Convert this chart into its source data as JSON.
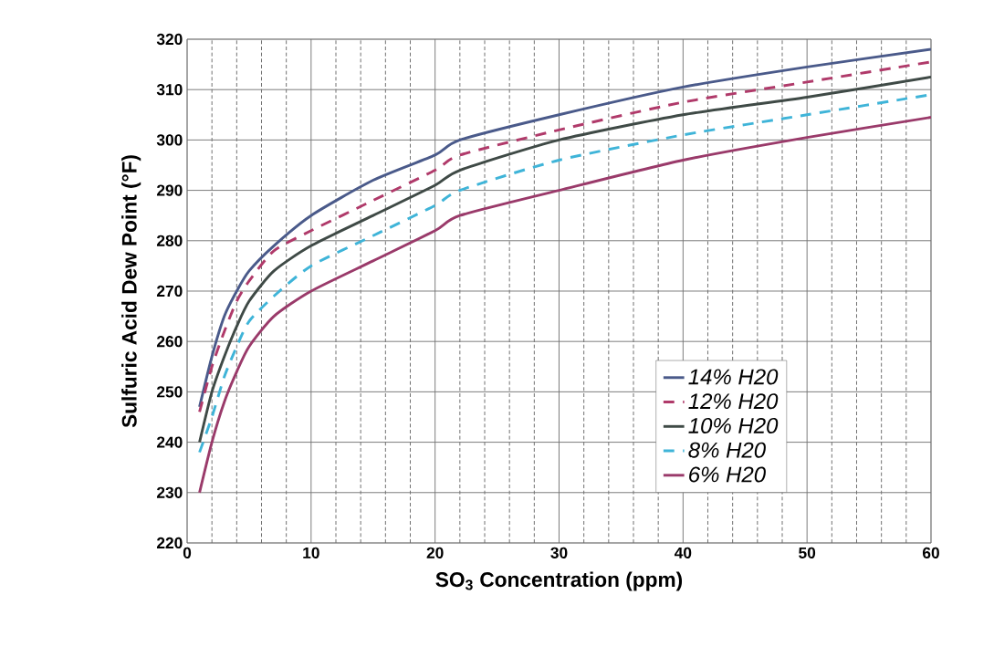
{
  "chart_data": {
    "type": "line",
    "xlabel": "SO$_{3}$ Concentration (ppm)",
    "ylabel": "Sulfuric Acid Dew Point (°F)",
    "x": [
      1,
      2,
      3,
      4,
      5,
      7,
      10,
      15,
      20,
      22,
      30,
      40,
      50,
      60
    ],
    "series": [
      {
        "name": "14% H20",
        "color": "#4a5a8a",
        "line_style": "solid",
        "values": [
          247,
          257,
          265,
          270,
          274,
          279,
          285,
          292,
          297,
          300,
          305,
          310.5,
          314.5,
          318
        ]
      },
      {
        "name": "12% H20",
        "color": "#b03a6a",
        "line_style": "dashed",
        "values": [
          246,
          255,
          262,
          268,
          272,
          278,
          282,
          288,
          294,
          297,
          302,
          307.5,
          311.5,
          315.5
        ]
      },
      {
        "name": "10% H20",
        "color": "#3f4a46",
        "line_style": "solid",
        "values": [
          240,
          250,
          257,
          263,
          268,
          274,
          279,
          285,
          291,
          294,
          300,
          305,
          308.5,
          312.5
        ]
      },
      {
        "name": "8% H20",
        "color": "#3fb4d8",
        "line_style": "dashed",
        "values": [
          238,
          245,
          253,
          259,
          264,
          269,
          275,
          281,
          287,
          290,
          296,
          301,
          305,
          309
        ]
      },
      {
        "name": "6% H20",
        "color": "#9a3a6a",
        "line_style": "solid",
        "values": [
          230,
          240,
          248,
          254,
          259,
          265,
          270,
          276,
          282,
          285,
          290,
          296,
          300.5,
          304.5
        ]
      }
    ],
    "xlim": [
      0,
      60
    ],
    "xticks": [
      0,
      10,
      20,
      30,
      40,
      50,
      60
    ],
    "ylim": [
      220,
      320
    ],
    "yticks": [
      220,
      230,
      240,
      250,
      260,
      270,
      280,
      290,
      300,
      310,
      320
    ],
    "grid": true,
    "legend": "bottom right",
    "marker": "none"
  }
}
